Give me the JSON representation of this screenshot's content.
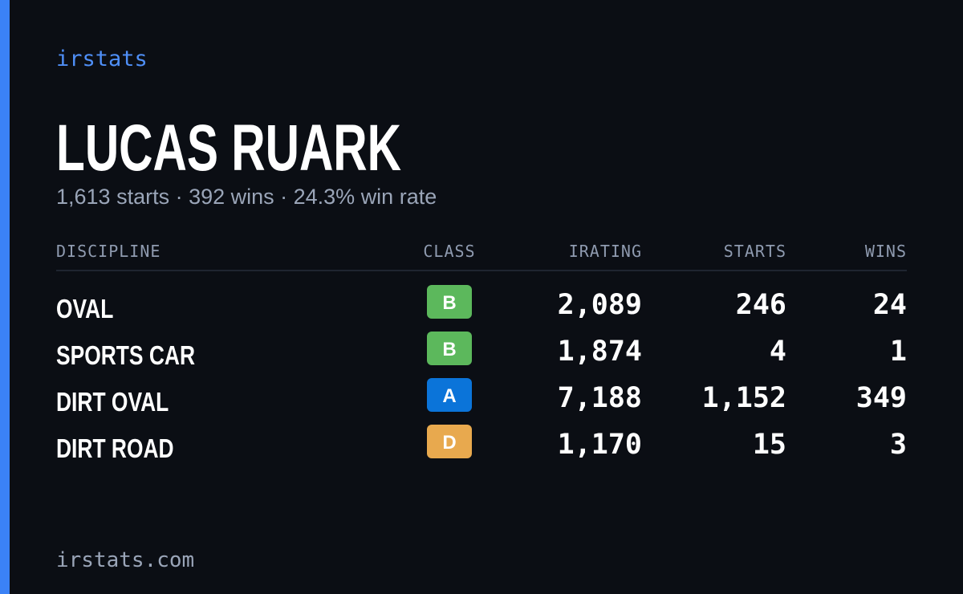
{
  "brand": "irstats",
  "player": {
    "name": "LUCAS RUARK",
    "summary": "1,613 starts · 392 wins · 24.3% win rate"
  },
  "table": {
    "headers": [
      "DISCIPLINE",
      "CLASS",
      "IRATING",
      "STARTS",
      "WINS"
    ],
    "rows": [
      {
        "discipline": "OVAL",
        "class": "B",
        "class_color": "#5cb85c",
        "irating": "2,089",
        "starts": "246",
        "wins": "24"
      },
      {
        "discipline": "SPORTS CAR",
        "class": "B",
        "class_color": "#5cb85c",
        "irating": "1,874",
        "starts": "4",
        "wins": "1"
      },
      {
        "discipline": "DIRT OVAL",
        "class": "A",
        "class_color": "#0b74d9",
        "irating": "7,188",
        "starts": "1,152",
        "wins": "349"
      },
      {
        "discipline": "DIRT ROAD",
        "class": "D",
        "class_color": "#e8a94e",
        "irating": "1,170",
        "starts": "15",
        "wins": "3"
      }
    ]
  },
  "footer": "irstats.com"
}
